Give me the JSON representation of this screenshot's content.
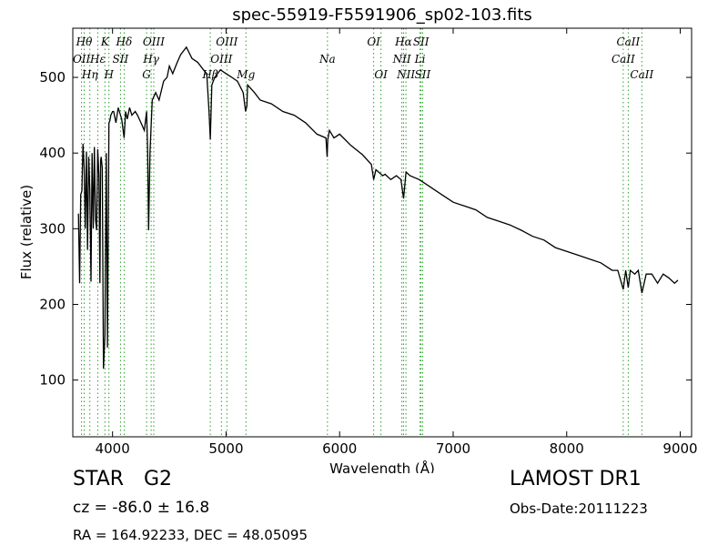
{
  "chart_data": {
    "type": "line",
    "title": "spec-55919-F5591906_sp02-103.fits",
    "xlabel": "Wavelength (Å)",
    "ylabel": "Flux (relative)",
    "xlim": [
      3650,
      9100
    ],
    "ylim": [
      25,
      565
    ],
    "xticks": [
      4000,
      5000,
      6000,
      7000,
      8000,
      9000
    ],
    "yticks": [
      100,
      200,
      300,
      400,
      500
    ],
    "grid": false,
    "line_color": "#000000",
    "marker_color": "#2ca02c",
    "series": [
      {
        "x": [
          3700,
          3710,
          3720,
          3730,
          3740,
          3750,
          3760,
          3770,
          3780,
          3790,
          3800,
          3810,
          3820,
          3830,
          3840,
          3850,
          3860,
          3870,
          3880,
          3889,
          3895,
          3900,
          3910,
          3920,
          3933,
          3945,
          3955,
          3968,
          3975,
          3985,
          4000,
          4010,
          4030,
          4050,
          4080,
          4102,
          4115,
          4130,
          4150,
          4170,
          4200,
          4220,
          4250,
          4280,
          4300,
          4310,
          4318,
          4330,
          4350,
          4380,
          4410,
          4450,
          4480,
          4500,
          4530,
          4570,
          4600,
          4650,
          4700,
          4750,
          4800,
          4830,
          4850,
          4861,
          4875,
          4900,
          4950,
          5000,
          5050,
          5100,
          5150,
          5172,
          5183,
          5190,
          5250,
          5300,
          5400,
          5500,
          5600,
          5700,
          5800,
          5880,
          5890,
          5896,
          5910,
          5950,
          6000,
          6100,
          6200,
          6280,
          6300,
          6320,
          6380,
          6400,
          6450,
          6500,
          6540,
          6563,
          6585,
          6620,
          6700,
          6800,
          6900,
          7000,
          7100,
          7200,
          7300,
          7400,
          7500,
          7600,
          7700,
          7800,
          7900,
          8000,
          8100,
          8200,
          8300,
          8400,
          8450,
          8498,
          8520,
          8542,
          8560,
          8600,
          8630,
          8662,
          8700,
          8750,
          8800,
          8850,
          8900,
          8950,
          8980
        ],
        "y": [
          320,
          228,
          345,
          350,
          412,
          380,
          300,
          402,
          272,
          395,
          352,
          230,
          400,
          300,
          408,
          312,
          298,
          405,
          370,
          228,
          390,
          395,
          380,
          115,
          160,
          400,
          143,
          440,
          442,
          450,
          455,
          455,
          440,
          460,
          445,
          420,
          455,
          445,
          460,
          450,
          455,
          450,
          440,
          430,
          455,
          400,
          298,
          400,
          470,
          480,
          470,
          495,
          500,
          515,
          505,
          520,
          530,
          540,
          525,
          520,
          510,
          505,
          455,
          418,
          490,
          500,
          510,
          505,
          500,
          495,
          480,
          455,
          462,
          490,
          480,
          470,
          465,
          455,
          450,
          440,
          425,
          420,
          395,
          418,
          430,
          420,
          425,
          410,
          398,
          385,
          365,
          378,
          370,
          372,
          365,
          370,
          365,
          340,
          375,
          370,
          365,
          355,
          345,
          335,
          330,
          325,
          315,
          310,
          305,
          298,
          290,
          285,
          275,
          270,
          265,
          260,
          255,
          245,
          245,
          220,
          245,
          222,
          245,
          240,
          245,
          215,
          240,
          240,
          228,
          240,
          235,
          228,
          232
        ]
      }
    ],
    "spectral_lines": [
      {
        "label": "OII",
        "x": 3727,
        "row": 2
      },
      {
        "label": "Hθ",
        "x": 3750,
        "row": 1
      },
      {
        "label": "Hη",
        "x": 3800,
        "row": 3
      },
      {
        "label": "Hε",
        "x": 3870,
        "row": 2
      },
      {
        "label": "SII",
        "x": 4070,
        "row": 2
      },
      {
        "label": "K",
        "x": 3933,
        "row": 1
      },
      {
        "label": "H",
        "x": 3968,
        "row": 3
      },
      {
        "label": "Hδ",
        "x": 4102,
        "row": 1
      },
      {
        "label": "OIII",
        "x": 4363,
        "row": 1
      },
      {
        "label": "Hγ",
        "x": 4340,
        "row": 2
      },
      {
        "label": "G",
        "x": 4300,
        "row": 3
      },
      {
        "label": "OIII",
        "x": 5007,
        "row": 1
      },
      {
        "label": "OIII",
        "x": 4959,
        "row": 2
      },
      {
        "label": "Hβ",
        "x": 4861,
        "row": 3
      },
      {
        "label": "Mg",
        "x": 5175,
        "row": 3
      },
      {
        "label": "Na",
        "x": 5893,
        "row": 2
      },
      {
        "label": "OI",
        "x": 6300,
        "row": 1
      },
      {
        "label": "OI",
        "x": 6364,
        "row": 3
      },
      {
        "label": "Hα",
        "x": 6563,
        "row": 1
      },
      {
        "label": "NII",
        "x": 6548,
        "row": 2
      },
      {
        "label": "NII",
        "x": 6584,
        "row": 3
      },
      {
        "label": "SII",
        "x": 6717,
        "row": 1
      },
      {
        "label": "Li",
        "x": 6708,
        "row": 2
      },
      {
        "label": "SII",
        "x": 6731,
        "row": 3
      },
      {
        "label": "CaII",
        "x": 8542,
        "row": 1
      },
      {
        "label": "CaII",
        "x": 8498,
        "row": 2
      },
      {
        "label": "CaII",
        "x": 8662,
        "row": 3
      }
    ]
  },
  "info": {
    "object_class": "STAR",
    "subclass": "G2",
    "redshift": "cz = -86.0 ± 16.8",
    "coords": "RA = 164.92233, DEC = 48.05095",
    "survey": "LAMOST DR1",
    "obs_date": "Obs-Date:20111223"
  }
}
